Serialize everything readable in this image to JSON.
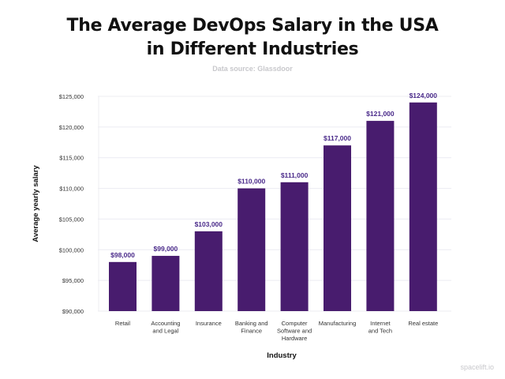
{
  "chart_data": {
    "type": "bar",
    "title_lines": [
      "The Average DevOps Salary in the USA",
      "in Different Industries"
    ],
    "subtitle": "Data source:  Glassdoor",
    "xlabel": "Industry",
    "ylabel": "Average yearly salary",
    "categories": [
      [
        "Retail"
      ],
      [
        "Accounting",
        "and Legal"
      ],
      [
        "Insurance"
      ],
      [
        "Banking and",
        "Finance"
      ],
      [
        "Computer",
        "Software and",
        "Hardware"
      ],
      [
        "Manufacturing"
      ],
      [
        "Internet",
        "and Tech"
      ],
      [
        "Real estate"
      ]
    ],
    "values": [
      98000,
      99000,
      103000,
      110000,
      111000,
      117000,
      121000,
      124000
    ],
    "data_labels": [
      "$98,000",
      "$99,000",
      "$103,000",
      "$110,000",
      "$111,000",
      "$117,000",
      "$121,000",
      "$124,000"
    ],
    "ylim": [
      90000,
      125000
    ],
    "yticks": [
      90000,
      95000,
      100000,
      105000,
      110000,
      115000,
      120000,
      125000
    ],
    "ytick_labels": [
      "$90,000",
      "$95,000",
      "$100,000",
      "$105,000",
      "$110,000",
      "$115,000",
      "$120,000",
      "$125,000"
    ],
    "grid": true,
    "bar_color": "#481c6e",
    "label_color": "#4a2a8a"
  },
  "watermark": "spacelift.io"
}
